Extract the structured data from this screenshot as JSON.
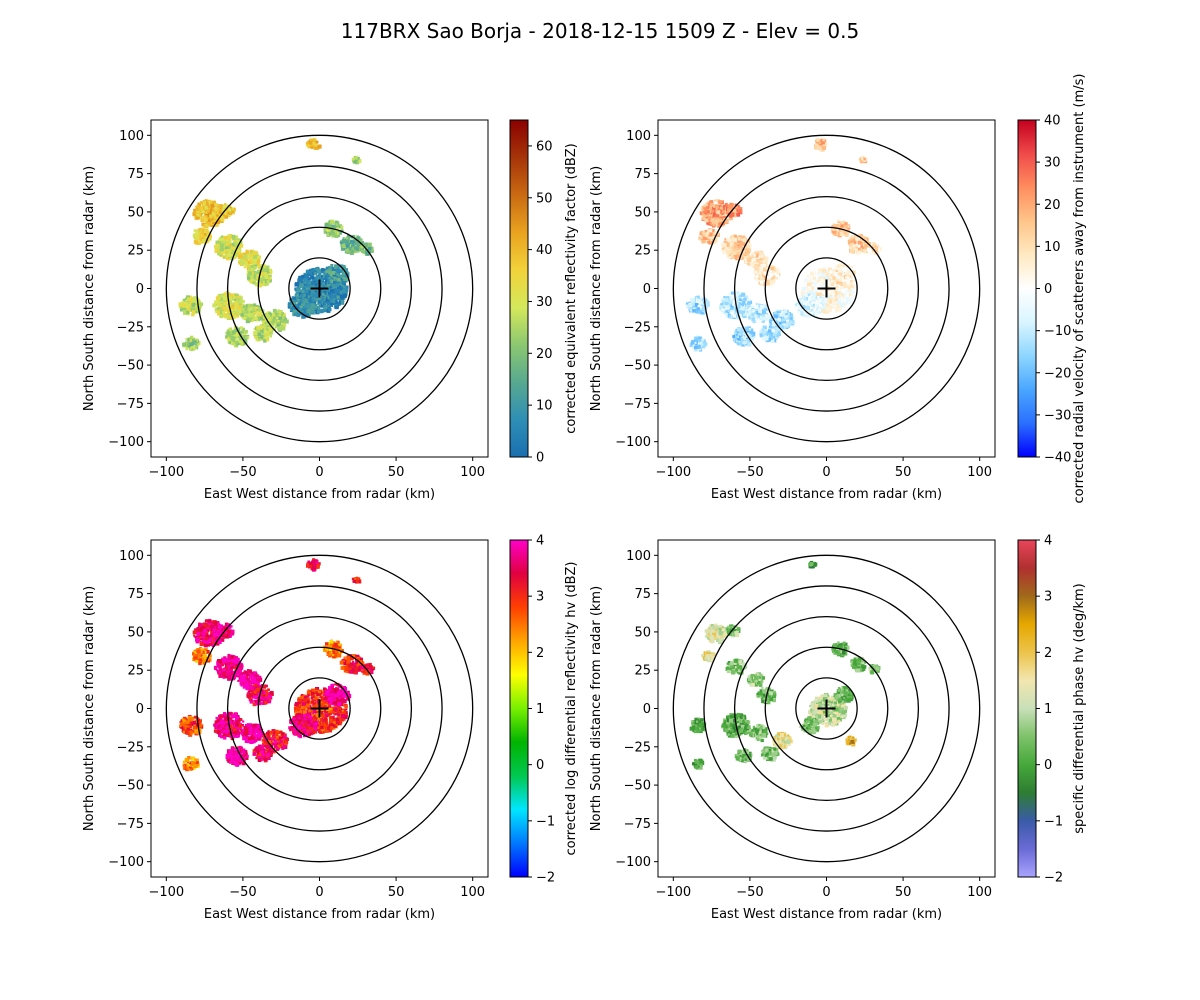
{
  "figure": {
    "title": "117BRX Sao Borja - 2018-12-15 1509 Z -  Elev = 0.5"
  },
  "chart_data": [
    {
      "type": "heatmap",
      "panel": "top-left",
      "xlabel": "East West distance from radar (km)",
      "ylabel": "North South distance from radar (km)",
      "xlim": [
        -110,
        110
      ],
      "ylim": [
        -110,
        110
      ],
      "xticks": [
        -100,
        -50,
        0,
        50,
        100
      ],
      "yticks": [
        -100,
        -75,
        -50,
        -25,
        0,
        25,
        50,
        75,
        100
      ],
      "range_rings_km": [
        20,
        40,
        60,
        80,
        100
      ],
      "colorbar": {
        "label": "corrected equivalent reflectivity factor (dBZ)",
        "colormap": "pyart_HomeyerRainbow",
        "range": [
          0,
          65
        ],
        "ticks": [
          0,
          10,
          20,
          30,
          40,
          50,
          60
        ],
        "stops": [
          "#1a6fb0",
          "#2f8fb5",
          "#58a98f",
          "#8cc870",
          "#d4e85a",
          "#f2d23a",
          "#e9a21f",
          "#c96a12",
          "#a63409",
          "#8b0000"
        ]
      },
      "echo_cells": [
        {
          "x": -73,
          "y": 50,
          "r": 10,
          "v": 38
        },
        {
          "x": -62,
          "y": 52,
          "r": 5,
          "v": 36
        },
        {
          "x": -78,
          "y": 35,
          "r": 6,
          "v": 34
        },
        {
          "x": -60,
          "y": 28,
          "r": 9,
          "v": 30
        },
        {
          "x": -47,
          "y": 20,
          "r": 7,
          "v": 32
        },
        {
          "x": -40,
          "y": 10,
          "r": 8,
          "v": 28
        },
        {
          "x": -85,
          "y": -10,
          "r": 7,
          "v": 28
        },
        {
          "x": -60,
          "y": -10,
          "r": 10,
          "v": 30
        },
        {
          "x": -45,
          "y": -15,
          "r": 7,
          "v": 27
        },
        {
          "x": -30,
          "y": -20,
          "r": 8,
          "v": 26
        },
        {
          "x": -85,
          "y": -35,
          "r": 5,
          "v": 24
        },
        {
          "x": -55,
          "y": -30,
          "r": 7,
          "v": 25
        },
        {
          "x": -38,
          "y": -28,
          "r": 6,
          "v": 27
        },
        {
          "x": 0,
          "y": 0,
          "r": 17,
          "v": 6
        },
        {
          "x": 10,
          "y": 10,
          "r": 8,
          "v": 10
        },
        {
          "x": -12,
          "y": -10,
          "r": 9,
          "v": 8
        },
        {
          "x": 8,
          "y": 40,
          "r": 6,
          "v": 22
        },
        {
          "x": 20,
          "y": 30,
          "r": 7,
          "v": 18
        },
        {
          "x": 30,
          "y": 27,
          "r": 4,
          "v": 20
        },
        {
          "x": -5,
          "y": 95,
          "r": 4,
          "v": 38
        },
        {
          "x": 23,
          "y": 85,
          "r": 2,
          "v": 22
        }
      ]
    },
    {
      "type": "heatmap",
      "panel": "top-right",
      "xlabel": "East West distance from radar (km)",
      "ylabel": "North South distance from radar (km)",
      "xlim": [
        -110,
        110
      ],
      "ylim": [
        -110,
        110
      ],
      "xticks": [
        -100,
        -50,
        0,
        50,
        100
      ],
      "yticks": [
        -100,
        -75,
        -50,
        -25,
        0,
        25,
        50,
        75,
        100
      ],
      "range_rings_km": [
        20,
        40,
        60,
        80,
        100
      ],
      "colorbar": {
        "label": "corrected radial velocity of scatterers away from instrument (m/s)",
        "colormap": "pyart_BuDRd18",
        "range": [
          -40,
          40
        ],
        "ticks": [
          -40,
          -30,
          -20,
          -10,
          0,
          10,
          20,
          30,
          40
        ],
        "stops": [
          "#0000ff",
          "#2a6fff",
          "#4aa6ff",
          "#8dd6ff",
          "#d9f5ff",
          "#ffffff",
          "#ffe9c2",
          "#ffc58a",
          "#ff8d5e",
          "#f04a4a",
          "#c4001e"
        ]
      },
      "echo_cells": [
        {
          "x": -73,
          "y": 50,
          "r": 10,
          "v": 20
        },
        {
          "x": -62,
          "y": 52,
          "r": 5,
          "v": 24
        },
        {
          "x": -78,
          "y": 35,
          "r": 6,
          "v": 14
        },
        {
          "x": -60,
          "y": 28,
          "r": 9,
          "v": 12
        },
        {
          "x": -47,
          "y": 20,
          "r": 7,
          "v": 10
        },
        {
          "x": -40,
          "y": 10,
          "r": 8,
          "v": 8
        },
        {
          "x": -85,
          "y": -10,
          "r": 7,
          "v": -12
        },
        {
          "x": -60,
          "y": -10,
          "r": 10,
          "v": -10
        },
        {
          "x": -45,
          "y": -15,
          "r": 7,
          "v": -9
        },
        {
          "x": -30,
          "y": -20,
          "r": 8,
          "v": -12
        },
        {
          "x": -85,
          "y": -35,
          "r": 5,
          "v": -14
        },
        {
          "x": -55,
          "y": -30,
          "r": 7,
          "v": -16
        },
        {
          "x": -38,
          "y": -28,
          "r": 6,
          "v": -12
        },
        {
          "x": 0,
          "y": 0,
          "r": 17,
          "v": 2
        },
        {
          "x": 10,
          "y": 10,
          "r": 8,
          "v": 6
        },
        {
          "x": -12,
          "y": -10,
          "r": 9,
          "v": -6
        },
        {
          "x": 8,
          "y": 40,
          "r": 6,
          "v": 14
        },
        {
          "x": 20,
          "y": 30,
          "r": 7,
          "v": 12
        },
        {
          "x": 30,
          "y": 27,
          "r": 4,
          "v": 8
        },
        {
          "x": -5,
          "y": 95,
          "r": 4,
          "v": 16
        },
        {
          "x": 23,
          "y": 85,
          "r": 2,
          "v": 12
        }
      ]
    },
    {
      "type": "heatmap",
      "panel": "bottom-left",
      "xlabel": "East West distance from radar (km)",
      "ylabel": "North South distance from radar (km)",
      "xlim": [
        -110,
        110
      ],
      "ylim": [
        -110,
        110
      ],
      "xticks": [
        -100,
        -50,
        0,
        50,
        100
      ],
      "yticks": [
        -100,
        -75,
        -50,
        -25,
        0,
        25,
        50,
        75,
        100
      ],
      "range_rings_km": [
        20,
        40,
        60,
        80,
        100
      ],
      "colorbar": {
        "label": "corrected log differential reflectivity hv (dBZ)",
        "colormap": "pyart_RefDiff",
        "range": [
          -2,
          4
        ],
        "ticks": [
          -2,
          -1,
          0,
          1,
          2,
          3,
          4
        ],
        "stops": [
          "#0000ff",
          "#0078ff",
          "#00e6ff",
          "#00c850",
          "#00b400",
          "#78f000",
          "#ffff00",
          "#ffa500",
          "#ff4000",
          "#e00040",
          "#ff00c8"
        ]
      },
      "echo_cells": [
        {
          "x": -73,
          "y": 50,
          "r": 10,
          "v": 3.6
        },
        {
          "x": -62,
          "y": 52,
          "r": 5,
          "v": 3.9
        },
        {
          "x": -78,
          "y": 35,
          "r": 6,
          "v": 2.5
        },
        {
          "x": -60,
          "y": 28,
          "r": 9,
          "v": 3.8
        },
        {
          "x": -47,
          "y": 20,
          "r": 7,
          "v": 3.9
        },
        {
          "x": -40,
          "y": 10,
          "r": 8,
          "v": 3.5
        },
        {
          "x": -85,
          "y": -10,
          "r": 7,
          "v": 2.8
        },
        {
          "x": -60,
          "y": -10,
          "r": 10,
          "v": 3.7
        },
        {
          "x": -45,
          "y": -15,
          "r": 7,
          "v": 3.9
        },
        {
          "x": -30,
          "y": -20,
          "r": 8,
          "v": 3.2
        },
        {
          "x": -85,
          "y": -35,
          "r": 5,
          "v": 2.4
        },
        {
          "x": -55,
          "y": -30,
          "r": 7,
          "v": 3.9
        },
        {
          "x": -38,
          "y": -28,
          "r": 6,
          "v": 3.5
        },
        {
          "x": 0,
          "y": 0,
          "r": 17,
          "v": 3.0
        },
        {
          "x": 10,
          "y": 10,
          "r": 8,
          "v": 3.8
        },
        {
          "x": -12,
          "y": -10,
          "r": 9,
          "v": 3.6
        },
        {
          "x": 8,
          "y": 40,
          "r": 6,
          "v": 2.4
        },
        {
          "x": 20,
          "y": 30,
          "r": 7,
          "v": 3.1
        },
        {
          "x": 30,
          "y": 27,
          "r": 4,
          "v": 3.4
        },
        {
          "x": -5,
          "y": 95,
          "r": 4,
          "v": 3.4
        },
        {
          "x": 23,
          "y": 85,
          "r": 2,
          "v": 3.2
        }
      ]
    },
    {
      "type": "heatmap",
      "panel": "bottom-right",
      "xlabel": "East West distance from radar (km)",
      "ylabel": "North South distance from radar (km)",
      "xlim": [
        -110,
        110
      ],
      "ylim": [
        -110,
        110
      ],
      "xticks": [
        -100,
        -50,
        0,
        50,
        100
      ],
      "yticks": [
        -100,
        -75,
        -50,
        -25,
        0,
        25,
        50,
        75,
        100
      ],
      "range_rings_km": [
        20,
        40,
        60,
        80,
        100
      ],
      "colorbar": {
        "label": "specific differential phase hv (deg/km)",
        "colormap": "pyart_Theodore16",
        "range": [
          -2,
          4
        ],
        "ticks": [
          -2,
          -1,
          0,
          1,
          2,
          3,
          4
        ],
        "stops": [
          "#a8a4ff",
          "#6b6bd6",
          "#3a5ba8",
          "#2e7d32",
          "#46a83a",
          "#7ec26a",
          "#c8e0b8",
          "#f2e6b0",
          "#ecc34a",
          "#e6a800",
          "#a06a1a",
          "#b03030",
          "#e8455a"
        ]
      },
      "echo_cells": [
        {
          "x": -73,
          "y": 50,
          "r": 7,
          "v": 1.3
        },
        {
          "x": -62,
          "y": 52,
          "r": 4,
          "v": 0.6
        },
        {
          "x": -78,
          "y": 35,
          "r": 4,
          "v": 1.6
        },
        {
          "x": -60,
          "y": 28,
          "r": 6,
          "v": 0.5
        },
        {
          "x": -47,
          "y": 20,
          "r": 5,
          "v": 0.7
        },
        {
          "x": -40,
          "y": 10,
          "r": 6,
          "v": 0.4
        },
        {
          "x": -85,
          "y": -10,
          "r": 5,
          "v": 0.3
        },
        {
          "x": -60,
          "y": -10,
          "r": 9,
          "v": 0.2
        },
        {
          "x": -45,
          "y": -15,
          "r": 6,
          "v": 0.4
        },
        {
          "x": -30,
          "y": -20,
          "r": 6,
          "v": 1.5
        },
        {
          "x": -85,
          "y": -35,
          "r": 3,
          "v": 0.1
        },
        {
          "x": -55,
          "y": -30,
          "r": 5,
          "v": 0.3
        },
        {
          "x": -38,
          "y": -28,
          "r": 5,
          "v": 0.5
        },
        {
          "x": 0,
          "y": 0,
          "r": 12,
          "v": 1.0
        },
        {
          "x": 10,
          "y": 10,
          "r": 6,
          "v": 0.3
        },
        {
          "x": -12,
          "y": -10,
          "r": 6,
          "v": 0.5
        },
        {
          "x": 8,
          "y": 40,
          "r": 5,
          "v": 0.2
        },
        {
          "x": 20,
          "y": 30,
          "r": 5,
          "v": 0.4
        },
        {
          "x": 30,
          "y": 27,
          "r": 3,
          "v": 0.6
        },
        {
          "x": -10,
          "y": 95,
          "r": 2,
          "v": 0.0
        },
        {
          "x": 15,
          "y": -20,
          "r": 3,
          "v": 2.2
        }
      ]
    }
  ]
}
